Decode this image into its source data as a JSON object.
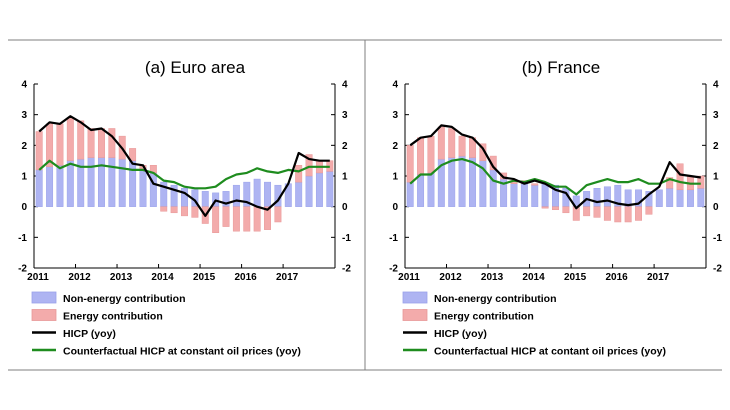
{
  "colors": {
    "non_energy": "#aeb4f2",
    "non_energy_border": "#9aa2ea",
    "energy": "#f3abab",
    "energy_border": "#e89898",
    "hicp": "#000000",
    "counterfactual": "#1e8c1e"
  },
  "legend": [
    {
      "key": "non_energy",
      "label": "Non-energy contribution",
      "kind": "box"
    },
    {
      "key": "energy",
      "label": "Energy contribution",
      "kind": "box"
    },
    {
      "key": "hicp",
      "label": "HICP (yoy)",
      "kind": "line"
    },
    {
      "key": "counterfactual",
      "label": "Counterfactual HICP at constant oil prices (yoy)",
      "kind": "line"
    }
  ],
  "legend_b_counterfactual_label": "Counterfactual HICP at contant oil prices (yoy)",
  "chart_data": [
    {
      "type": "bar",
      "title": "(a)  Euro area",
      "ylim": [
        -2,
        4
      ],
      "yticks": [
        "-2",
        "-1",
        "0",
        "1",
        "2",
        "3",
        "4"
      ],
      "x_tick_labels": [
        "2011",
        "2012",
        "2013",
        "2014",
        "2015",
        "2016",
        "2017"
      ],
      "x_period": "quarterly, 2011Q1–2017Q3",
      "series": [
        {
          "name": "Non-energy contribution",
          "values": [
            1.2,
            1.3,
            1.35,
            1.5,
            1.55,
            1.6,
            1.6,
            1.6,
            1.55,
            1.5,
            1.2,
            1.1,
            0.8,
            0.7,
            0.6,
            0.55,
            0.5,
            0.45,
            0.5,
            0.7,
            0.8,
            0.9,
            0.8,
            0.7,
            0.75,
            0.8,
            1.0,
            1.1,
            1.15
          ]
        },
        {
          "name": "Energy contribution",
          "values": [
            1.25,
            1.4,
            1.35,
            1.4,
            1.25,
            0.95,
            0.95,
            0.95,
            0.75,
            0.4,
            0.15,
            0.25,
            -0.15,
            -0.2,
            -0.3,
            -0.35,
            -0.55,
            -0.85,
            -0.65,
            -0.8,
            -0.8,
            -0.8,
            -0.75,
            -0.5,
            0.0,
            0.55,
            0.7,
            0.4,
            0.35
          ]
        },
        {
          "name": "HICP (yoy)",
          "values": [
            2.45,
            2.75,
            2.7,
            2.95,
            2.75,
            2.5,
            2.55,
            2.3,
            1.9,
            1.4,
            1.35,
            0.75,
            0.65,
            0.55,
            0.45,
            0.2,
            -0.3,
            0.2,
            0.1,
            0.2,
            0.15,
            0.0,
            -0.1,
            0.2,
            0.75,
            1.75,
            1.55,
            1.5,
            1.5
          ]
        },
        {
          "name": "Counterfactual HICP at constant oil prices (yoy)",
          "values": [
            1.2,
            1.5,
            1.25,
            1.4,
            1.3,
            1.3,
            1.35,
            1.3,
            1.25,
            1.2,
            1.2,
            1.1,
            0.85,
            0.8,
            0.65,
            0.6,
            0.6,
            0.65,
            0.9,
            1.05,
            1.1,
            1.25,
            1.15,
            1.1,
            1.2,
            1.15,
            1.3,
            1.3,
            1.3
          ]
        }
      ]
    },
    {
      "type": "bar",
      "title": "(b)  France",
      "ylim": [
        -2,
        4
      ],
      "yticks": [
        "-2",
        "-1",
        "0",
        "1",
        "2",
        "3",
        "4"
      ],
      "x_tick_labels": [
        "2011",
        "2012",
        "2013",
        "2014",
        "2015",
        "2016",
        "2017"
      ],
      "x_period": "quarterly, 2011Q1–2017Q3",
      "series": [
        {
          "name": "Non-energy contribution",
          "values": [
            0.8,
            1.05,
            1.1,
            1.55,
            1.6,
            1.65,
            1.6,
            1.5,
            1.2,
            0.9,
            0.75,
            0.75,
            0.7,
            0.75,
            0.7,
            0.6,
            0.35,
            0.5,
            0.6,
            0.65,
            0.7,
            0.55,
            0.55,
            0.5,
            0.55,
            0.6,
            0.55,
            0.55,
            0.6
          ]
        },
        {
          "name": "Energy contribution",
          "values": [
            1.2,
            1.2,
            1.2,
            1.05,
            0.95,
            0.65,
            0.65,
            0.55,
            0.45,
            0.2,
            0.1,
            0.1,
            0.05,
            -0.05,
            -0.1,
            -0.2,
            -0.45,
            -0.3,
            -0.35,
            -0.45,
            -0.5,
            -0.5,
            -0.45,
            -0.25,
            0.0,
            0.35,
            0.85,
            0.45,
            0.4
          ]
        },
        {
          "name": "HICP (yoy)",
          "values": [
            2.0,
            2.25,
            2.3,
            2.65,
            2.6,
            2.35,
            2.25,
            1.9,
            1.3,
            0.95,
            0.9,
            0.75,
            0.85,
            0.75,
            0.55,
            0.45,
            -0.05,
            0.25,
            0.15,
            0.2,
            0.1,
            0.05,
            0.1,
            0.4,
            0.65,
            1.45,
            1.05,
            1.0,
            0.95
          ]
        },
        {
          "name": "Counterfactual HICP at contant oil prices (yoy)",
          "values": [
            0.75,
            1.05,
            1.05,
            1.35,
            1.5,
            1.55,
            1.45,
            1.25,
            0.85,
            0.75,
            0.85,
            0.8,
            0.9,
            0.8,
            0.65,
            0.65,
            0.4,
            0.7,
            0.8,
            0.9,
            0.8,
            0.8,
            0.9,
            0.75,
            0.75,
            0.9,
            0.8,
            0.75,
            0.75
          ]
        }
      ]
    }
  ]
}
